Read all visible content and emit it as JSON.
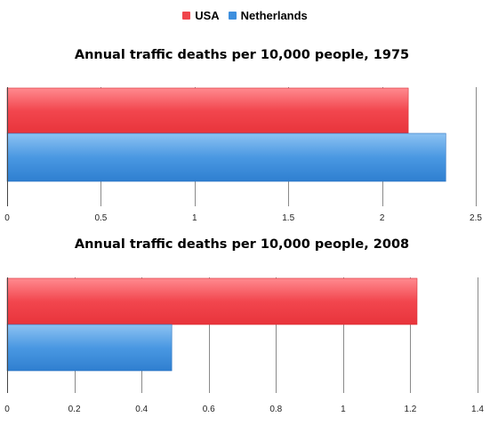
{
  "legend": {
    "items": [
      {
        "label": "USA",
        "color": "#f0444b"
      },
      {
        "label": "Netherlands",
        "color": "#3d8fde"
      }
    ]
  },
  "chart_data": [
    {
      "type": "bar",
      "orientation": "horizontal",
      "title": "Annual traffic deaths per 10,000 people, 1975",
      "categories": [
        "USA",
        "Netherlands"
      ],
      "values": [
        2.14,
        2.34
      ],
      "xlim": [
        0,
        2.5
      ],
      "ticks": [
        "0",
        "0.5",
        "1",
        "1.5",
        "2",
        "2.5"
      ],
      "tick_values": [
        0,
        0.5,
        1,
        1.5,
        2,
        2.5
      ],
      "grid": true
    },
    {
      "type": "bar",
      "orientation": "horizontal",
      "title": "Annual traffic deaths per 10,000 people, 2008",
      "categories": [
        "USA",
        "Netherlands"
      ],
      "values": [
        1.22,
        0.49
      ],
      "xlim": [
        0,
        1.4
      ],
      "ticks": [
        "0",
        "0.2",
        "0.4",
        "0.6",
        "0.8",
        "1",
        "1.2",
        "1.4"
      ],
      "tick_values": [
        0,
        0.2,
        0.4,
        0.6,
        0.8,
        1.0,
        1.2,
        1.4
      ],
      "grid": true
    }
  ]
}
